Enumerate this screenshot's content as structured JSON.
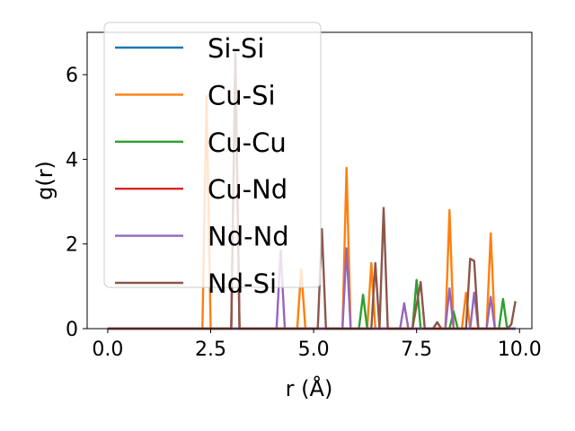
{
  "chart_data": {
    "type": "line",
    "xlabel": "r (Å)",
    "ylabel": "g(r)",
    "xlim": [
      -0.5,
      10.3
    ],
    "ylim": [
      0,
      7
    ],
    "xticks": [
      0.0,
      2.5,
      5.0,
      7.5,
      10.0
    ],
    "xtick_labels": [
      "0.0",
      "2.5",
      "5.0",
      "7.5",
      "10.0"
    ],
    "yticks": [
      0,
      2,
      4,
      6
    ],
    "ytick_labels": [
      "0",
      "2",
      "4",
      "6"
    ],
    "grid": false,
    "legend": "upper left",
    "series": [
      {
        "name": "Si-Si",
        "color": "#1f77b4",
        "points": [
          [
            0,
            0
          ],
          [
            9.9,
            0
          ]
        ]
      },
      {
        "name": "Cu-Si",
        "color": "#ff7f0e",
        "points": [
          [
            0,
            0
          ],
          [
            2.3,
            0
          ],
          [
            2.4,
            5.5
          ],
          [
            2.5,
            0
          ],
          [
            4.6,
            0
          ],
          [
            4.7,
            1.4
          ],
          [
            4.8,
            0
          ],
          [
            5.7,
            0
          ],
          [
            5.8,
            3.8
          ],
          [
            5.9,
            0
          ],
          [
            6.3,
            0
          ],
          [
            6.4,
            1.55
          ],
          [
            6.5,
            0
          ],
          [
            8.2,
            0
          ],
          [
            8.3,
            2.8
          ],
          [
            8.4,
            0
          ],
          [
            8.6,
            0
          ],
          [
            8.7,
            0.85
          ],
          [
            8.8,
            0
          ],
          [
            9.2,
            0
          ],
          [
            9.3,
            2.25
          ],
          [
            9.4,
            0
          ],
          [
            9.9,
            0
          ]
        ]
      },
      {
        "name": "Cu-Cu",
        "color": "#2ca02c",
        "points": [
          [
            0,
            0
          ],
          [
            6.1,
            0
          ],
          [
            6.2,
            0.8
          ],
          [
            6.3,
            0
          ],
          [
            7.4,
            0
          ],
          [
            7.5,
            1.15
          ],
          [
            7.6,
            0
          ],
          [
            8.3,
            0
          ],
          [
            8.4,
            0.4
          ],
          [
            8.5,
            0
          ],
          [
            9.5,
            0
          ],
          [
            9.6,
            0.7
          ],
          [
            9.7,
            0
          ],
          [
            9.9,
            0
          ]
        ]
      },
      {
        "name": "Cu-Nd",
        "color": "#d62728",
        "points": [
          [
            0,
            0
          ],
          [
            3.0,
            0
          ],
          [
            3.1,
            6.4
          ],
          [
            3.2,
            0
          ],
          [
            9.9,
            0
          ]
        ]
      },
      {
        "name": "Nd-Nd",
        "color": "#9467bd",
        "points": [
          [
            0,
            0
          ],
          [
            4.1,
            0
          ],
          [
            4.2,
            1.85
          ],
          [
            4.3,
            0
          ],
          [
            5.7,
            0
          ],
          [
            5.8,
            1.9
          ],
          [
            5.9,
            0
          ],
          [
            7.1,
            0
          ],
          [
            7.2,
            0.6
          ],
          [
            7.3,
            0
          ],
          [
            7.9,
            0
          ],
          [
            8.0,
            0.15
          ],
          [
            8.1,
            0
          ],
          [
            8.2,
            0
          ],
          [
            8.3,
            0.95
          ],
          [
            8.4,
            0
          ],
          [
            8.8,
            0
          ],
          [
            8.9,
            0.85
          ],
          [
            9.0,
            0
          ],
          [
            9.2,
            0
          ],
          [
            9.3,
            0.75
          ],
          [
            9.4,
            0
          ],
          [
            9.9,
            0
          ]
        ]
      },
      {
        "name": "Nd-Si",
        "color": "#8c564b",
        "points": [
          [
            0,
            0
          ],
          [
            3.0,
            0
          ],
          [
            3.1,
            6.5
          ],
          [
            3.2,
            0
          ],
          [
            5.1,
            0
          ],
          [
            5.2,
            2.35
          ],
          [
            5.3,
            0
          ],
          [
            6.4,
            0
          ],
          [
            6.5,
            1.55
          ],
          [
            6.6,
            0
          ],
          [
            6.6,
            0
          ],
          [
            6.7,
            2.85
          ],
          [
            6.8,
            0
          ],
          [
            7.4,
            0
          ],
          [
            7.6,
            1.1
          ],
          [
            7.7,
            0
          ],
          [
            7.9,
            0
          ],
          [
            8.0,
            0.15
          ],
          [
            8.1,
            0
          ],
          [
            8.7,
            0
          ],
          [
            8.8,
            1.65
          ],
          [
            8.9,
            1.6
          ],
          [
            9.0,
            0
          ],
          [
            9.7,
            0
          ],
          [
            9.8,
            0.1
          ],
          [
            9.9,
            0.65
          ]
        ]
      }
    ]
  }
}
